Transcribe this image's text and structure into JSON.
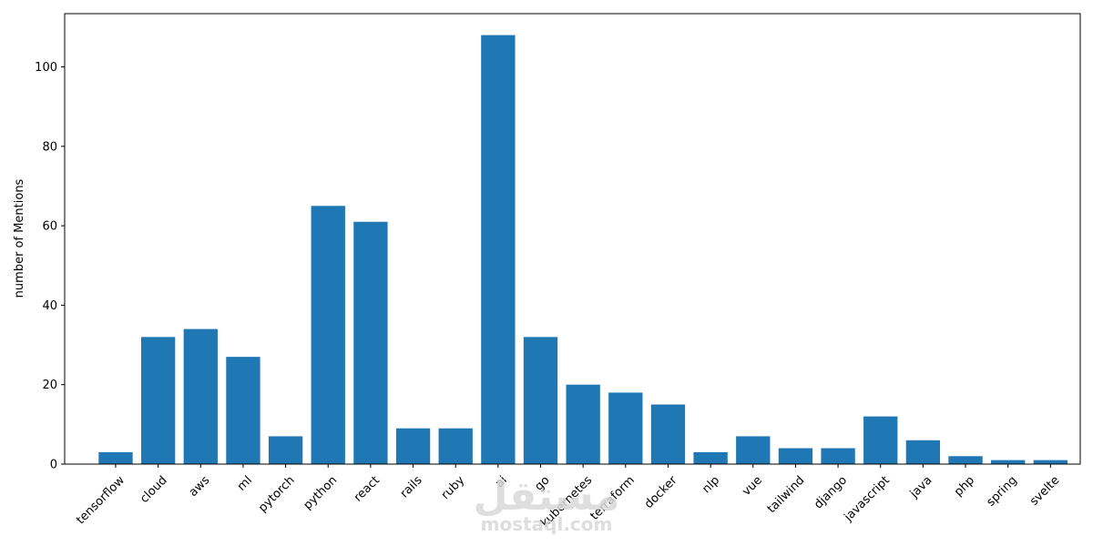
{
  "chart_data": {
    "type": "bar",
    "title": "",
    "xlabel": "",
    "ylabel": "number of Mentions",
    "categories": [
      "tensorflow",
      "cloud",
      "aws",
      "ml",
      "pytorch",
      "python",
      "react",
      "rails",
      "ruby",
      "ai",
      "go",
      "kubernetes",
      "terraform",
      "docker",
      "nlp",
      "vue",
      "tailwind",
      "django",
      "javascript",
      "java",
      "php",
      "spring",
      "svelte"
    ],
    "values": [
      3,
      32,
      34,
      27,
      7,
      65,
      61,
      9,
      9,
      108,
      32,
      20,
      18,
      15,
      3,
      7,
      4,
      4,
      12,
      6,
      2,
      1,
      1
    ],
    "ylim": [
      0,
      113.4
    ],
    "yticks": [
      0,
      20,
      40,
      60,
      80,
      100
    ],
    "xtick_rotation_deg": 45,
    "grid": false,
    "legend": "none",
    "bar_color": "#1f77b4"
  },
  "watermark": {
    "arabic": "مستقل",
    "latin": "mostaql.com"
  }
}
